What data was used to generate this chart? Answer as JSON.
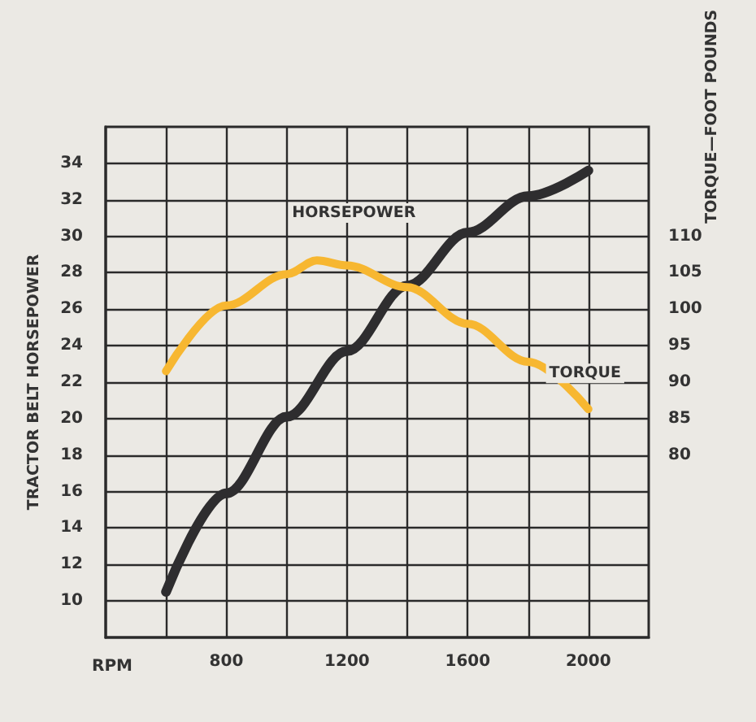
{
  "chart_data": {
    "type": "line",
    "xlabel": "RPM",
    "ylabel": "TRACTOR BELT HORSEPOWER",
    "y2label": "TORQUE—FOOT POUNDS",
    "x": [
      600,
      800,
      1000,
      1100,
      1200,
      1400,
      1600,
      1800,
      2000
    ],
    "series": [
      {
        "name": "HORSEPOWER",
        "color": "#2e2d2f",
        "values": [
          10.5,
          15.9,
          20.1,
          null,
          23.7,
          27.3,
          30.2,
          32.2,
          33.6
        ]
      },
      {
        "name": "TORQUE",
        "color": "#f7b731",
        "axis": "y2",
        "values": [
          91.5,
          100.5,
          104.8,
          106.7,
          106,
          103,
          98,
          92.8,
          86.3
        ]
      }
    ],
    "xlim": [
      400,
      2200
    ],
    "xticks": [
      {
        "value": 600,
        "label": null
      },
      800,
      {
        "value": 1000,
        "label": null
      },
      1200,
      {
        "value": 1400,
        "label": null
      },
      1600,
      {
        "value": 1800,
        "label": null
      },
      2000
    ],
    "ylim": [
      8,
      36
    ],
    "yticks": [
      10,
      12,
      14,
      16,
      18,
      20,
      22,
      24,
      26,
      28,
      30,
      32,
      34
    ],
    "y2lim": [
      55,
      125
    ],
    "y2ticks": [
      80,
      85,
      90,
      95,
      100,
      105,
      110
    ],
    "grid": true,
    "legend": false,
    "marker": "none",
    "line_style": "solid"
  }
}
